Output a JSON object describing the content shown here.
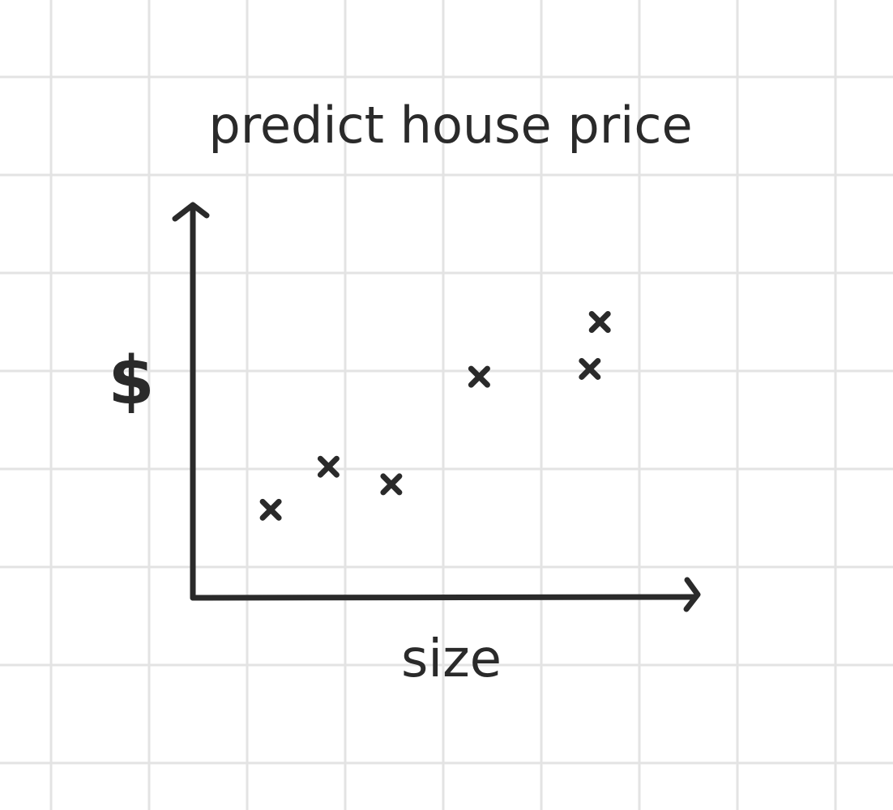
{
  "chart_data": {
    "type": "scatter",
    "title": "predict house price",
    "xlabel": "size",
    "ylabel": "$",
    "grid": true,
    "points": [
      {
        "x": 0.155,
        "y": 0.225
      },
      {
        "x": 0.27,
        "y": 0.335
      },
      {
        "x": 0.395,
        "y": 0.29
      },
      {
        "x": 0.57,
        "y": 0.565
      },
      {
        "x": 0.79,
        "y": 0.585
      },
      {
        "x": 0.81,
        "y": 0.705
      }
    ]
  },
  "colors": {
    "ink": "#2a2a2a",
    "grid": "#e3e3e3",
    "background": "#ffffff"
  }
}
